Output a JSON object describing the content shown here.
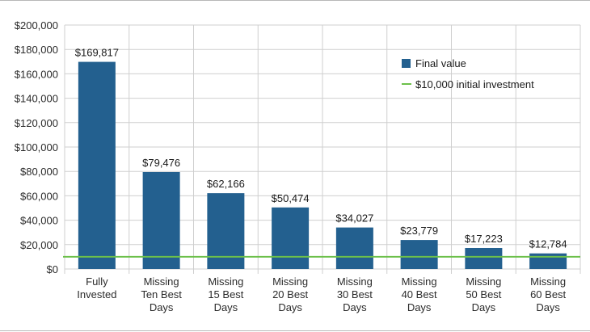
{
  "chart_data": {
    "type": "bar",
    "categories": [
      [
        "Fully",
        "Invested"
      ],
      [
        "Missing",
        "Ten Best",
        "Days"
      ],
      [
        "Missing",
        "15 Best",
        "Days"
      ],
      [
        "Missing",
        "20 Best",
        "Days"
      ],
      [
        "Missing",
        "30 Best",
        "Days"
      ],
      [
        "Missing",
        "40 Best",
        "Days"
      ],
      [
        "Missing",
        "50 Best",
        "Days"
      ],
      [
        "Missing",
        "60 Best",
        "Days"
      ]
    ],
    "series": [
      {
        "name": "Final value",
        "values": [
          169817,
          79476,
          62166,
          50474,
          34027,
          23779,
          17223,
          12784
        ],
        "data_labels": [
          "$169,817",
          "$79,476",
          "$62,166",
          "$50,474",
          "$34,027",
          "$23,779",
          "$17,223",
          "$12,784"
        ],
        "color": "#23608f"
      }
    ],
    "reference_line": {
      "name": "$10,000 initial investment",
      "value": 10000,
      "color": "#6cc04a"
    },
    "ylim": [
      0,
      200000
    ],
    "yticks": [
      0,
      20000,
      40000,
      60000,
      80000,
      100000,
      120000,
      140000,
      160000,
      180000,
      200000
    ],
    "ytick_labels": [
      "$0",
      "$20,000",
      "$40,000",
      "$60,000",
      "$80,000",
      "$100,000",
      "$120,000",
      "$140,000",
      "$160,000",
      "$180,000",
      "$200,000"
    ],
    "grid": true,
    "legend_position": "top-right",
    "grid_color": "#cfcfcf"
  }
}
